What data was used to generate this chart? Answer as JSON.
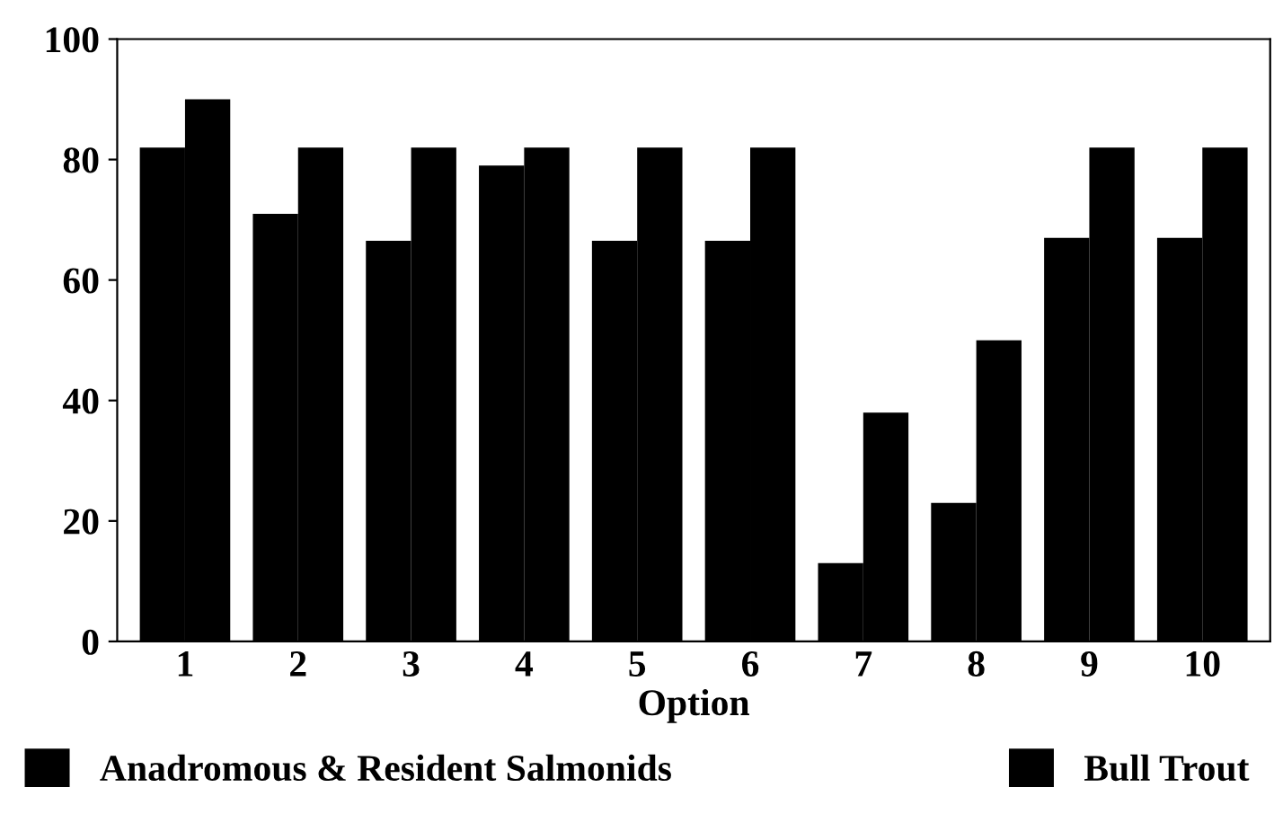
{
  "chart_data": {
    "type": "bar",
    "xlabel": "Option",
    "categories": [
      "1",
      "2",
      "3",
      "4",
      "5",
      "6",
      "7",
      "8",
      "9",
      "10"
    ],
    "series": [
      {
        "name": "Anadromous & Resident Salmonids",
        "color": "#000000",
        "values": [
          82,
          71,
          66.5,
          79,
          66.5,
          66.5,
          13,
          23,
          67,
          67
        ]
      },
      {
        "name": "Bull Trout",
        "color": "#000000",
        "values": [
          90,
          82,
          82,
          82,
          82,
          82,
          38,
          50,
          82,
          82
        ]
      }
    ],
    "ylim": [
      0,
      100
    ],
    "yticks": [
      0,
      20,
      40,
      60,
      80,
      100
    ],
    "grid": false,
    "legend": "bottom"
  }
}
